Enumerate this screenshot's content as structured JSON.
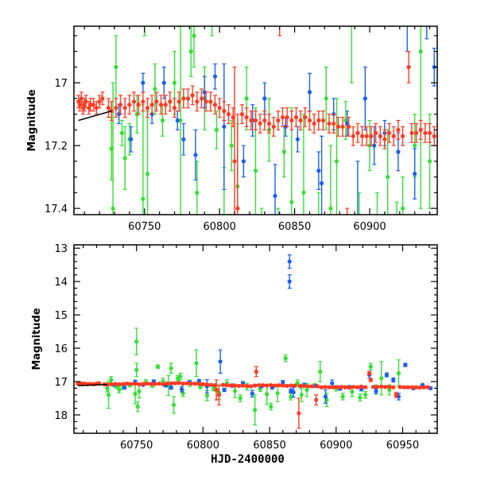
{
  "chart_data": [
    {
      "type": "scatter",
      "panel": "top",
      "xlabel": "",
      "ylabel": "Magnitude",
      "xlim": [
        60703,
        60945
      ],
      "ylim": [
        17.42,
        16.82
      ],
      "y_inverted": true,
      "xticks": [
        "60750",
        "60800",
        "60850",
        "60900"
      ],
      "xtick_values": [
        60750,
        60800,
        60850,
        60900
      ],
      "yticks": [
        "17",
        "17.2",
        "17.4"
      ],
      "ytick_values": [
        17,
        17.2,
        17.4
      ],
      "fit_line": [
        [
          60706,
          17.12
        ],
        [
          60728,
          17.09
        ]
      ]
    },
    {
      "type": "scatter",
      "panel": "bottom",
      "xlabel": "HJD-2400000",
      "ylabel": "Magnitude",
      "xlim": [
        60703,
        60976
      ],
      "ylim": [
        18.55,
        12.9
      ],
      "y_inverted": true,
      "xticks": [
        "60750",
        "60800",
        "60850",
        "60900",
        "60950"
      ],
      "xtick_values": [
        60750,
        60800,
        60850,
        60900,
        60950
      ],
      "yticks": [
        "13",
        "14",
        "15",
        "16",
        "17",
        "18"
      ],
      "ytick_values": [
        13,
        14,
        15,
        16,
        17,
        18
      ],
      "fit_line": [
        [
          60706,
          17.12
        ],
        [
          60728,
          17.09
        ]
      ]
    }
  ],
  "series": [
    {
      "name": "green",
      "color": "#33e033",
      "points": [
        [
          60728,
          17.21,
          0.1
        ],
        [
          60729,
          17.4,
          0.4
        ],
        [
          60731,
          16.95,
          0.1
        ],
        [
          60735,
          17.16,
          0.04
        ],
        [
          60737,
          17.24,
          0.1
        ],
        [
          60740,
          17.18,
          0.05
        ],
        [
          60745,
          17.1,
          0.06
        ],
        [
          60749,
          17.37,
          0.3
        ],
        [
          60750,
          15.8,
          0.4
        ],
        [
          60750,
          16.65,
          0.2
        ],
        [
          60751,
          17.75,
          0.15
        ],
        [
          60752,
          17.29,
          0.2
        ],
        [
          60757,
          17.02,
          0.08
        ],
        [
          60762,
          17.12,
          0.05
        ],
        [
          60766,
          16.55,
          0.05
        ],
        [
          60770,
          17.0,
          0.1
        ],
        [
          60774,
          17.12,
          0.3
        ],
        [
          60776,
          16.6,
          0.15
        ],
        [
          60778,
          17.7,
          0.25
        ],
        [
          60781,
          16.9,
          0.08
        ],
        [
          60783,
          16.85,
          0.1
        ],
        [
          60785,
          17.35,
          0.1
        ],
        [
          60790,
          17.05,
          0.1
        ],
        [
          60795,
          16.45,
          0.4
        ],
        [
          60798,
          17.15,
          0.06
        ],
        [
          60803,
          17.42,
          0.15
        ],
        [
          60808,
          17.2,
          0.08
        ],
        [
          60812,
          17.33,
          0.2
        ],
        [
          60818,
          17.05,
          0.1
        ],
        [
          60824,
          17.28,
          0.2
        ],
        [
          60828,
          17.5,
          0.1
        ],
        [
          60833,
          17.15,
          0.1
        ],
        [
          60839,
          17.85,
          0.45
        ],
        [
          60843,
          17.22,
          0.08
        ],
        [
          60848,
          17.38,
          0.3
        ],
        [
          60851,
          17.75,
          0.1
        ],
        [
          60856,
          17.35,
          0.25
        ],
        [
          60862,
          16.3,
          0.1
        ],
        [
          60866,
          17.45,
          0.1
        ],
        [
          60871,
          17.05,
          0.1
        ],
        [
          60874,
          17.4,
          0.2
        ],
        [
          60878,
          17.25,
          0.2
        ],
        [
          60884,
          17.12,
          0.06
        ],
        [
          60888,
          16.7,
          0.3
        ],
        [
          60893,
          17.55,
          0.2
        ],
        [
          60900,
          17.2,
          0.08
        ],
        [
          60905,
          17.45,
          0.1
        ],
        [
          60912,
          17.3,
          0.15
        ],
        [
          60918,
          17.48,
          0.1
        ],
        [
          60922,
          17.4,
          0.1
        ],
        [
          60926,
          16.55,
          0.1
        ],
        [
          60930,
          17.2,
          0.1
        ],
        [
          60934,
          16.9,
          0.5
        ],
        [
          60940,
          17.25,
          0.15
        ],
        [
          60947,
          16.75,
          0.4
        ]
      ]
    },
    {
      "name": "blue",
      "color": "#1a5ff0",
      "points": [
        [
          60733,
          17.1,
          0.03
        ],
        [
          60741,
          17.18,
          0.04
        ],
        [
          60749,
          17.0,
          0.03
        ],
        [
          60755,
          17.1,
          0.03
        ],
        [
          60763,
          17.0,
          0.05
        ],
        [
          60772,
          17.12,
          0.03
        ],
        [
          60776,
          17.18,
          0.05
        ],
        [
          60784,
          17.23,
          0.08
        ],
        [
          60790,
          17.03,
          0.05
        ],
        [
          60797,
          16.98,
          0.04
        ],
        [
          60803,
          17.14,
          0.2
        ],
        [
          60813,
          16.4,
          0.35
        ],
        [
          60816,
          17.25,
          0.05
        ],
        [
          60822,
          17.12,
          0.05
        ],
        [
          60830,
          17.05,
          0.05
        ],
        [
          60837,
          17.36,
          0.1
        ],
        [
          60844,
          17.14,
          0.03
        ],
        [
          60852,
          17.18,
          0.04
        ],
        [
          60860,
          17.03,
          0.06
        ],
        [
          60865,
          13.4,
          0.2
        ],
        [
          60865,
          14.0,
          0.2
        ],
        [
          60866,
          17.28,
          0.06
        ],
        [
          60868,
          17.32,
          0.15
        ],
        [
          60876,
          17.1,
          0.05
        ],
        [
          60885,
          17.13,
          0.04
        ],
        [
          60892,
          17.45,
          0.2
        ],
        [
          60897,
          17.05,
          0.1
        ],
        [
          60903,
          17.2,
          0.06
        ],
        [
          60910,
          17.16,
          0.04
        ],
        [
          60919,
          17.22,
          0.06
        ],
        [
          60925,
          16.8,
          0.1
        ],
        [
          60930,
          17.29,
          0.08
        ],
        [
          60938,
          16.8,
          0.06
        ],
        [
          60943,
          16.95,
          0.06
        ],
        [
          60947,
          17.45,
          0.1
        ],
        [
          60952,
          16.5,
          0.05
        ],
        [
          60958,
          17.2,
          0.03
        ],
        [
          60965,
          17.1,
          0.03
        ],
        [
          60971,
          17.2,
          0.03
        ]
      ]
    },
    {
      "name": "red",
      "color": "#ff3a22",
      "points": [
        [
          60706,
          17.06,
          0.02
        ],
        [
          60707,
          17.07,
          0.02
        ],
        [
          60708,
          17.05,
          0.02
        ],
        [
          60709,
          17.08,
          0.02
        ],
        [
          60710,
          17.07,
          0.02
        ],
        [
          60711,
          17.06,
          0.02
        ],
        [
          60713,
          17.08,
          0.02
        ],
        [
          60714,
          17.07,
          0.02
        ],
        [
          60716,
          17.07,
          0.02
        ],
        [
          60718,
          17.08,
          0.02
        ],
        [
          60720,
          17.06,
          0.02
        ],
        [
          60722,
          17.05,
          0.02
        ],
        [
          60726,
          17.08,
          0.03
        ],
        [
          60728,
          17.09,
          0.03
        ],
        [
          60731,
          17.08,
          0.03
        ],
        [
          60734,
          17.07,
          0.03
        ],
        [
          60737,
          17.08,
          0.03
        ],
        [
          60740,
          17.07,
          0.03
        ],
        [
          60743,
          17.06,
          0.03
        ],
        [
          60746,
          17.07,
          0.03
        ],
        [
          60749,
          17.06,
          0.03
        ],
        [
          60752,
          17.08,
          0.03
        ],
        [
          60755,
          17.07,
          0.03
        ],
        [
          60758,
          17.06,
          0.03
        ],
        [
          60761,
          17.07,
          0.03
        ],
        [
          60764,
          17.07,
          0.03
        ],
        [
          60767,
          17.06,
          0.03
        ],
        [
          60770,
          17.08,
          0.03
        ],
        [
          60773,
          17.06,
          0.03
        ],
        [
          60776,
          17.05,
          0.03
        ],
        [
          60779,
          17.05,
          0.03
        ],
        [
          60782,
          17.04,
          0.03
        ],
        [
          60785,
          17.06,
          0.03
        ],
        [
          60788,
          17.05,
          0.03
        ],
        [
          60791,
          17.06,
          0.03
        ],
        [
          60794,
          17.06,
          0.03
        ],
        [
          60797,
          17.07,
          0.03
        ],
        [
          60800,
          17.08,
          0.03
        ],
        [
          60803,
          17.09,
          0.03
        ],
        [
          60806,
          17.1,
          0.03
        ],
        [
          60809,
          17.11,
          0.03
        ],
        [
          60810,
          17.25,
          0.3
        ],
        [
          60812,
          17.4,
          0.3
        ],
        [
          60815,
          17.1,
          0.03
        ],
        [
          60818,
          17.11,
          0.03
        ],
        [
          60821,
          17.12,
          0.03
        ],
        [
          60824,
          17.12,
          0.03
        ],
        [
          60827,
          17.13,
          0.03
        ],
        [
          60830,
          17.12,
          0.03
        ],
        [
          60833,
          17.13,
          0.03
        ],
        [
          60836,
          17.14,
          0.03
        ],
        [
          60839,
          17.12,
          0.03
        ],
        [
          60840,
          16.7,
          0.15
        ],
        [
          60842,
          17.11,
          0.03
        ],
        [
          60845,
          17.11,
          0.03
        ],
        [
          60848,
          17.12,
          0.03
        ],
        [
          60851,
          17.11,
          0.03
        ],
        [
          60854,
          17.12,
          0.03
        ],
        [
          60857,
          17.11,
          0.03
        ],
        [
          60860,
          17.12,
          0.03
        ],
        [
          60863,
          17.13,
          0.03
        ],
        [
          60866,
          17.12,
          0.03
        ],
        [
          60869,
          17.12,
          0.03
        ],
        [
          60872,
          17.95,
          0.45
        ],
        [
          60873,
          17.13,
          0.03
        ],
        [
          60876,
          17.13,
          0.03
        ],
        [
          60879,
          17.14,
          0.03
        ],
        [
          60882,
          17.14,
          0.03
        ],
        [
          60885,
          17.55,
          0.15
        ],
        [
          60886,
          17.14,
          0.03
        ],
        [
          60889,
          17.17,
          0.03
        ],
        [
          60892,
          17.16,
          0.03
        ],
        [
          60895,
          17.17,
          0.03
        ],
        [
          60898,
          17.17,
          0.03
        ],
        [
          60901,
          17.17,
          0.03
        ],
        [
          60904,
          17.16,
          0.03
        ],
        [
          60907,
          17.17,
          0.03
        ],
        [
          60910,
          17.18,
          0.03
        ],
        [
          60913,
          17.16,
          0.03
        ],
        [
          60916,
          17.17,
          0.03
        ],
        [
          60919,
          17.15,
          0.03
        ],
        [
          60922,
          17.17,
          0.03
        ],
        [
          60925,
          16.75,
          0.05
        ],
        [
          60926,
          16.95,
          0.05
        ],
        [
          60928,
          17.16,
          0.03
        ],
        [
          60931,
          17.16,
          0.03
        ],
        [
          60934,
          17.15,
          0.03
        ],
        [
          60937,
          17.16,
          0.03
        ],
        [
          60940,
          17.16,
          0.03
        ],
        [
          60943,
          17.17,
          0.03
        ],
        [
          60945,
          17.4,
          0.08
        ],
        [
          60948,
          17.16,
          0.03
        ],
        [
          60951,
          17.17,
          0.03
        ],
        [
          60954,
          17.17,
          0.03
        ],
        [
          60957,
          17.17,
          0.03
        ],
        [
          60960,
          17.17,
          0.03
        ],
        [
          60963,
          17.18,
          0.03
        ],
        [
          60966,
          17.17,
          0.03
        ],
        [
          60969,
          17.17,
          0.03
        ]
      ]
    }
  ]
}
